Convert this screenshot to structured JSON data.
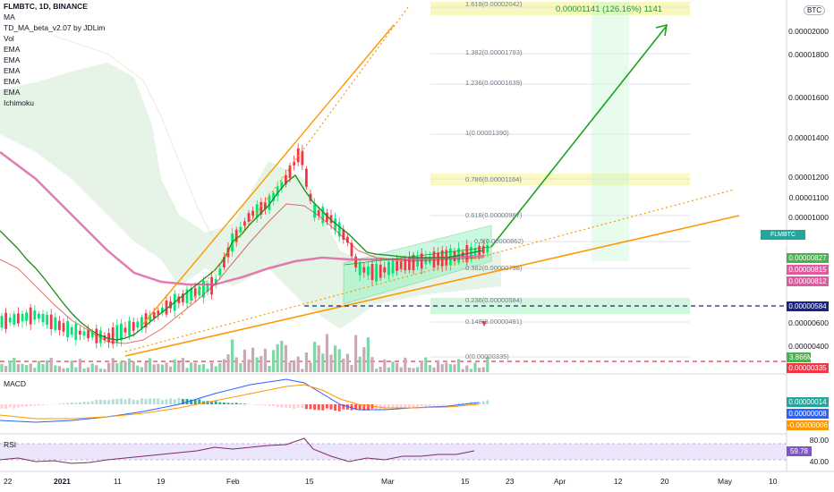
{
  "header": {
    "symbol_line": "FLMBTC, 1D, BINANCE",
    "indicators": [
      "MA",
      "TD_MA_beta_v2.07 by JDLim",
      "Vol",
      "EMA",
      "EMA",
      "EMA",
      "EMA",
      "EMA",
      "Ichimoku"
    ]
  },
  "price_axis": {
    "currency": "BTC",
    "ticks": [
      "0.00002000",
      "0.00001800",
      "0.00001600",
      "0.00001400",
      "0.00001200",
      "0.00001100",
      "0.00001000",
      "0.00000600",
      "0.00000500",
      "0.00000400"
    ]
  },
  "badges": [
    {
      "text": "FLMBTC  0.00000840",
      "color": "#26a69a"
    },
    {
      "text": "0.00000827",
      "color": "#4caf50"
    },
    {
      "text": "0.00000815",
      "color": "#e05aa0"
    },
    {
      "text": "0.00000812",
      "color": "#e05aa0"
    },
    {
      "text": "0.00000584",
      "color": "#1a237e"
    },
    {
      "text": "3.866M",
      "color": "#4caf50"
    },
    {
      "text": "0.00000335",
      "color": "#f23645"
    },
    {
      "text": "0.00000014",
      "color": "#26a69a"
    },
    {
      "text": "0.00000008",
      "color": "#2962ff"
    },
    {
      "text": "-0.00000006",
      "color": "#ff9800"
    },
    {
      "text": "59.78",
      "color": "#7e57c2"
    }
  ],
  "projection": {
    "label": "0.00001141 (126.16%) 1141"
  },
  "fib_levels": [
    {
      "label": "1.618(0.00002042)"
    },
    {
      "label": "1.382(0.00001793)"
    },
    {
      "label": "1.236(0.00001639)"
    },
    {
      "label": "1(0.00001390)"
    },
    {
      "label": "0.786(0.00001164)"
    },
    {
      "label": "0.618(0.00000987)"
    },
    {
      "label": "0.5(0.00000862)"
    },
    {
      "label": "0.382(0.00000738)"
    },
    {
      "label": "0.236(0.00000584)"
    },
    {
      "label": "0.148(0.00000491)"
    },
    {
      "label": "0(0.00000335)"
    }
  ],
  "macd": {
    "title": "MACD"
  },
  "rsi": {
    "title": "RSI",
    "upper": "80.00",
    "value": "59.78",
    "lower": "40.00"
  },
  "time_axis": {
    "ticks": [
      "22",
      "2021",
      "11",
      "19",
      "Feb",
      "15",
      "Mar",
      "15",
      "23",
      "Apr",
      "12",
      "20",
      "May",
      "10"
    ]
  },
  "colors": {
    "up": "#00e676",
    "down": "#f23645",
    "ema_fast": "#26a69a",
    "ema_slow": "#e05aa0",
    "trend_orange": "#ff9800",
    "projection_green": "#1aa31a"
  }
}
